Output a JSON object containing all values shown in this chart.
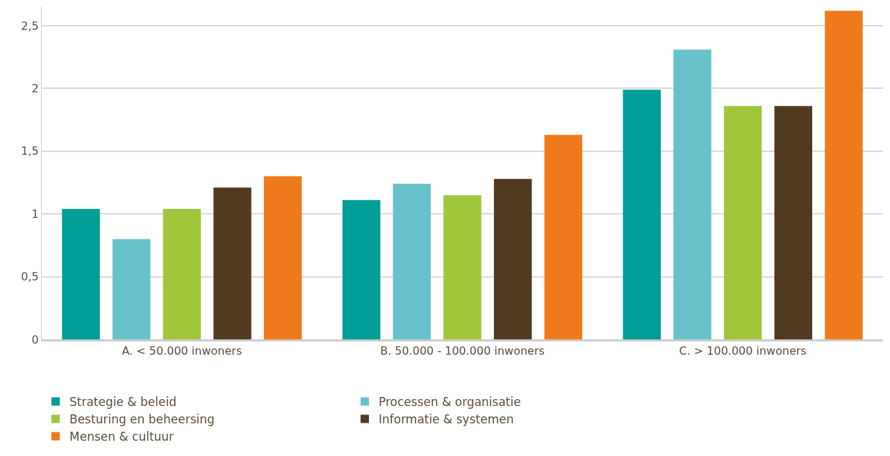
{
  "chart_data": {
    "type": "bar",
    "categories": [
      "A. < 50.000 inwoners",
      "B. 50.000 - 100.000 inwoners",
      "C. > 100.000 inwoners"
    ],
    "series": [
      {
        "name": "Strategie & beleid",
        "color": "#009e96",
        "values": [
          1.04,
          1.11,
          1.99
        ]
      },
      {
        "name": "Processen & organisatie",
        "color": "#67c2cb",
        "values": [
          0.8,
          1.24,
          2.31
        ]
      },
      {
        "name": "Besturing en beheersing",
        "color": "#a0c63c",
        "values": [
          1.04,
          1.15,
          1.86
        ]
      },
      {
        "name": "Informatie & systemen",
        "color": "#523a20",
        "values": [
          1.21,
          1.28,
          1.86
        ]
      },
      {
        "name": "Mensen & cultuur",
        "color": "#ee7a1c",
        "values": [
          1.3,
          1.63,
          2.62
        ]
      }
    ],
    "ylim": [
      0,
      2.65
    ],
    "yticks": [
      0,
      {
        "value": 0.5,
        "label": "0,5"
      },
      1,
      {
        "value": 1.5,
        "label": "1,5"
      },
      2,
      {
        "value": 2.5,
        "label": "2,5"
      }
    ],
    "grid": "y",
    "legend": "bottom"
  }
}
